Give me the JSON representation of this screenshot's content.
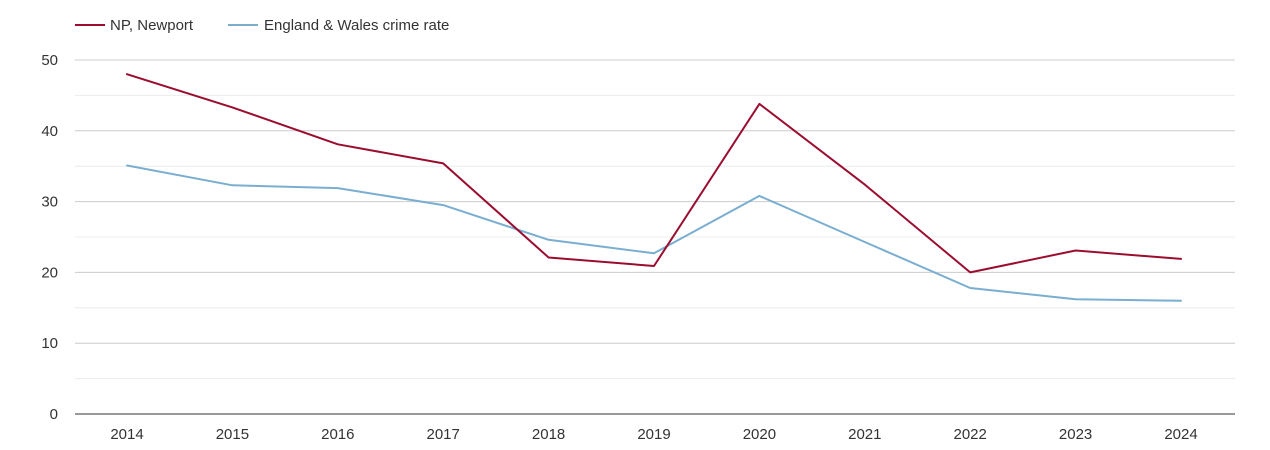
{
  "chart_data": {
    "type": "line",
    "title": "",
    "xlabel": "",
    "ylabel": "",
    "categories": [
      "2014",
      "2015",
      "2016",
      "2017",
      "2018",
      "2019",
      "2020",
      "2021",
      "2022",
      "2023",
      "2024"
    ],
    "ylim": [
      0,
      50
    ],
    "yticks": [
      0,
      10,
      20,
      30,
      40,
      50
    ],
    "grid": true,
    "legend_position": "top-left",
    "series": [
      {
        "name": "NP, Newport",
        "color": "#9b0d2f",
        "values": [
          48.0,
          43.3,
          38.1,
          35.4,
          22.1,
          20.9,
          43.8,
          32.4,
          20.0,
          23.1,
          21.9
        ]
      },
      {
        "name": "England & Wales crime rate",
        "color": "#7aaed1",
        "values": [
          35.1,
          32.3,
          31.9,
          29.5,
          24.6,
          22.7,
          30.8,
          24.3,
          17.8,
          16.2,
          16.0
        ]
      }
    ]
  }
}
